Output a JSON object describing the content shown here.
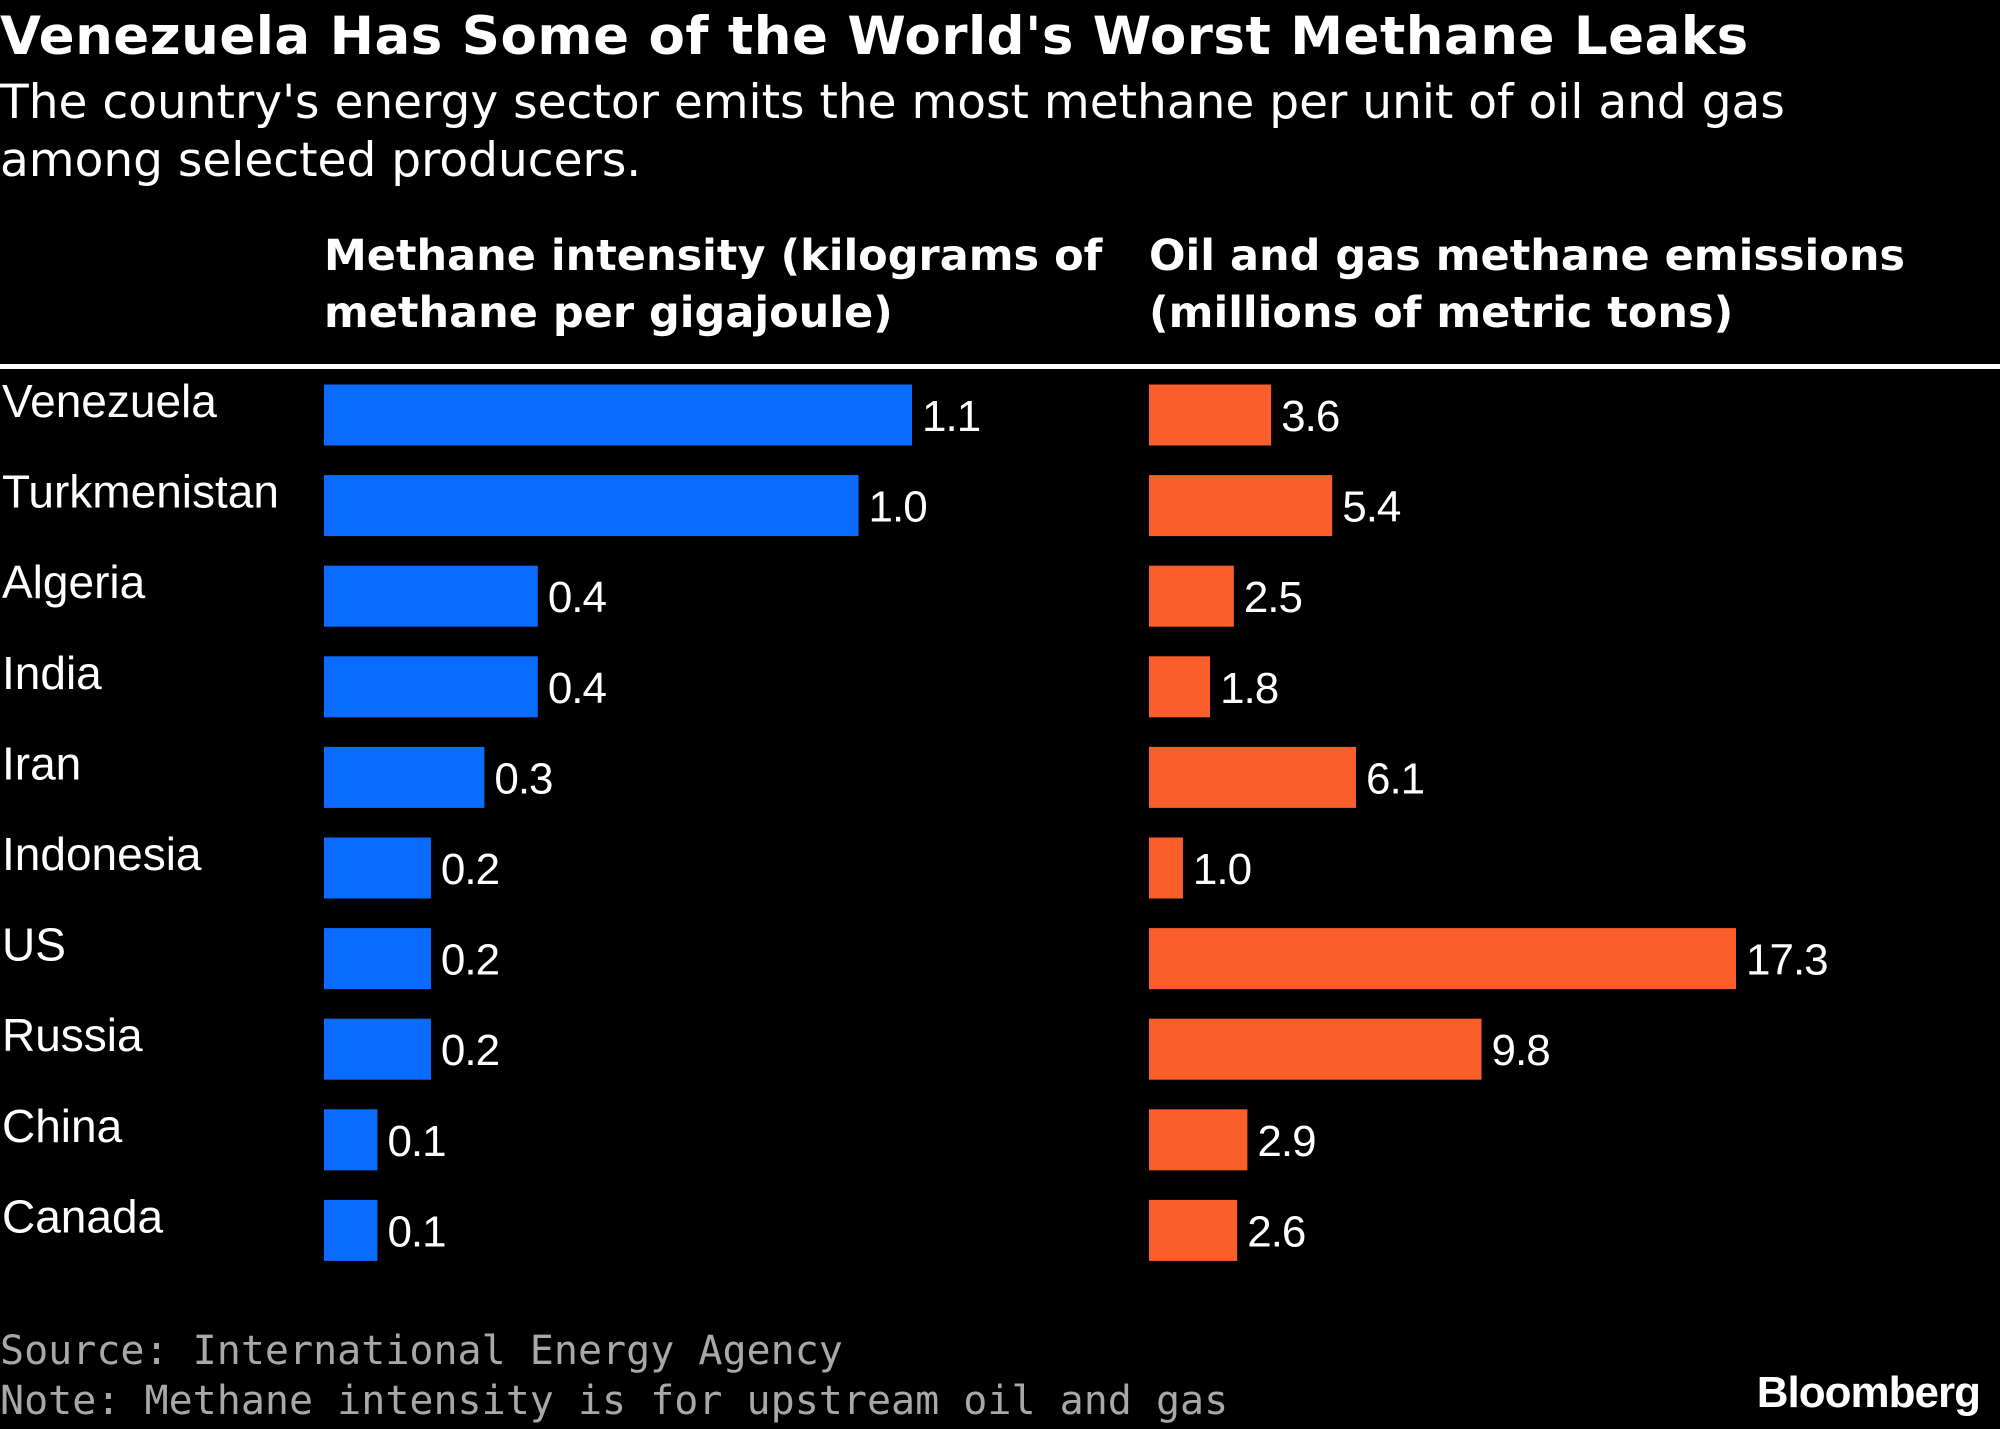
{
  "chart_data": {
    "type": "bar",
    "orientation": "horizontal",
    "title": "Venezuela Has Some of the World's Worst Methane Leaks",
    "subtitle": "The country's energy sector emits the most methane per unit of oil and gas among selected producers.",
    "categories": [
      "Venezuela",
      "Turkmenistan",
      "Algeria",
      "India",
      "Iran",
      "Indonesia",
      "US",
      "Russia",
      "China",
      "Canada"
    ],
    "panels": [
      {
        "header": "Methane intensity (kilograms of methane per gigajoule)",
        "header_lines": [
          "Methane intensity (kilograms of",
          "methane per gigajoule)"
        ],
        "color": "#0a6cff",
        "values": [
          1.1,
          1.0,
          0.4,
          0.4,
          0.3,
          0.2,
          0.2,
          0.2,
          0.1,
          0.1
        ],
        "labels": [
          "1.1",
          "1.0",
          "0.4",
          "0.4",
          "0.3",
          "0.2",
          "0.2",
          "0.2",
          "0.1",
          "0.1"
        ]
      },
      {
        "header": "Oil and gas methane emissions (millions of metric tons)",
        "header_lines": [
          "Oil and gas methane emissions",
          "(millions of metric tons)"
        ],
        "color": "#fa5e2b",
        "values": [
          3.6,
          5.4,
          2.5,
          1.8,
          6.1,
          1.0,
          17.3,
          9.8,
          2.9,
          2.6
        ],
        "labels": [
          "3.6",
          "5.4",
          "2.5",
          "1.8",
          "6.1",
          "1.0",
          "17.3",
          "9.8",
          "2.9",
          "2.6"
        ]
      }
    ],
    "grid": false,
    "legend": "none"
  },
  "footer": {
    "source": "Source: International Energy Agency",
    "note": "Note: Methane intensity is for upstream oil and gas",
    "brand": "Bloomberg"
  }
}
